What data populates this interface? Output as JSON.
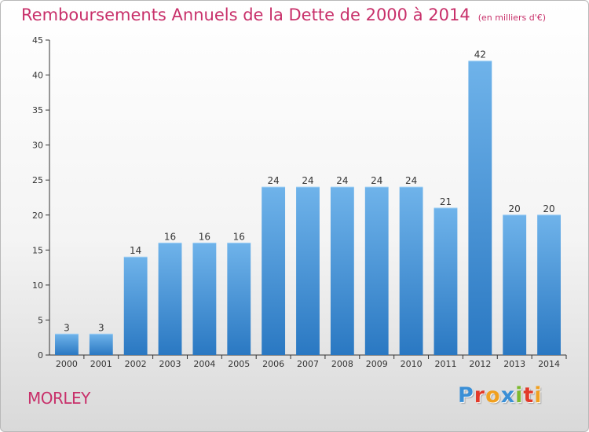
{
  "title": "Remboursements Annuels de la Dette de 2000 à 2014",
  "unit_note": "(en milliers d'€)",
  "commune": "MORLEY",
  "logo": {
    "text": "Proxiti",
    "letters": [
      {
        "ch": "P",
        "color": "#3a8fd6"
      },
      {
        "ch": "r",
        "color": "#e23a2a"
      },
      {
        "ch": "o",
        "color": "#f0a020"
      },
      {
        "ch": "x",
        "color": "#3a8fd6"
      },
      {
        "ch": "i",
        "color": "#7cb92e"
      },
      {
        "ch": "t",
        "color": "#e23a2a"
      },
      {
        "ch": "i",
        "color": "#f0a020"
      }
    ]
  },
  "colors": {
    "title": "#c8306a",
    "bar_top": "#6fb3ea",
    "bar_bottom": "#2a78c2",
    "axis": "#333333",
    "grid": "#dddddd"
  },
  "chart_data": {
    "type": "bar",
    "title": "Remboursements Annuels de la Dette de 2000 à 2014",
    "xlabel": "",
    "ylabel": "",
    "categories": [
      "2000",
      "2001",
      "2002",
      "2003",
      "2004",
      "2005",
      "2006",
      "2007",
      "2008",
      "2009",
      "2010",
      "2011",
      "2012",
      "2013",
      "2014"
    ],
    "values": [
      3,
      3,
      14,
      16,
      16,
      16,
      24,
      24,
      24,
      24,
      24,
      21,
      42,
      20,
      20
    ],
    "ylim": [
      0,
      45
    ],
    "yticks": [
      0,
      5,
      10,
      15,
      20,
      25,
      30,
      35,
      40,
      45
    ],
    "grid": false,
    "legend": "none"
  }
}
